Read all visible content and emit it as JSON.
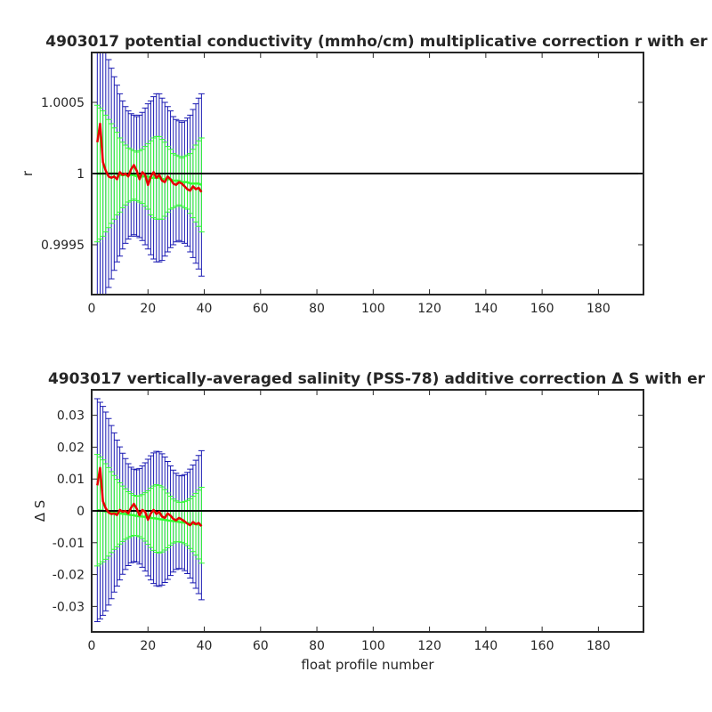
{
  "colors": {
    "correction": "#e60000",
    "conservative_err": "#1a1ab3",
    "stat_err": "#33ff33",
    "zero_line": "#000000"
  },
  "chart_data": [
    {
      "type": "line",
      "title": "4903017 potential conductivity (mmho/cm) multiplicative correction r with er",
      "xlabel": "",
      "ylabel": "r",
      "xlim": [
        0,
        196
      ],
      "ylim": [
        0.99915,
        1.00085
      ],
      "xticks": [
        0,
        20,
        40,
        60,
        80,
        100,
        120,
        140,
        160,
        180
      ],
      "yticks": [
        0.9995,
        1,
        1.0005
      ],
      "ytick_labels": [
        "0.9995",
        "1",
        "1.0005"
      ],
      "reference_line": 1,
      "grid": false,
      "x": [
        2,
        3,
        4,
        5,
        6,
        7,
        8,
        9,
        10,
        11,
        12,
        13,
        14,
        15,
        16,
        17,
        18,
        19,
        20,
        21,
        22,
        23,
        24,
        25,
        26,
        27,
        28,
        29,
        30,
        31,
        32,
        33,
        34,
        35,
        36,
        37,
        38,
        39
      ],
      "series": [
        {
          "values": [
            1.00022,
            1.00035,
            1.00008,
            1.00002,
            0.99998,
            0.99997,
            0.99998,
            0.99996,
            1.00001,
            0.99999,
            1,
            0.99998,
            1.00003,
            1.00006,
            1.00002,
            0.99996,
            1.00001,
            0.99999,
            0.99992,
            0.99998,
            1.00001,
            0.99997,
            0.99999,
            0.99995,
            0.99994,
            0.99998,
            0.99996,
            0.99993,
            0.99992,
            0.99994,
            0.99993,
            0.99991,
            0.99989,
            0.99988,
            0.99991,
            0.99989,
            0.9999,
            0.99987
          ]
        },
        {
          "values": [
            1,
            1,
            1,
            1,
            1,
            1,
            1,
            1,
            0.99999,
            0.99999,
            0.99999,
            0.99999,
            0.99999,
            0.99999,
            0.99998,
            0.99998,
            0.99998,
            0.99998,
            0.99998,
            0.99997,
            0.99997,
            0.99997,
            0.99997,
            0.99996,
            0.99996,
            0.99996,
            0.99996,
            0.99995,
            0.99995,
            0.99995,
            0.99994,
            0.99994,
            0.99994,
            0.99993,
            0.99993,
            0.99993,
            0.99993,
            0.99992
          ]
        },
        {
          "err": [
            0.00048,
            0.00046,
            0.00044,
            0.00041,
            0.00038,
            0.00035,
            0.00032,
            0.00029,
            0.00026,
            0.00023,
            0.00021,
            0.00019,
            0.00018,
            0.00017,
            0.00017,
            0.00018,
            0.00019,
            0.00021,
            0.00023,
            0.00026,
            0.00028,
            0.00029,
            0.00029,
            0.00028,
            0.00026,
            0.00023,
            0.00021,
            0.00019,
            0.00018,
            0.00017,
            0.00017,
            0.00018,
            0.00019,
            0.00021,
            0.00024,
            0.00027,
            0.0003,
            0.00033
          ]
        },
        {
          "err": [
            0.00096,
            0.00093,
            0.0009,
            0.00085,
            0.0008,
            0.00074,
            0.00068,
            0.00062,
            0.00057,
            0.00052,
            0.00048,
            0.00045,
            0.00043,
            0.00042,
            0.00042,
            0.00043,
            0.00045,
            0.00048,
            0.00051,
            0.00054,
            0.00057,
            0.00059,
            0.00059,
            0.00057,
            0.00054,
            0.00051,
            0.00048,
            0.00045,
            0.00043,
            0.00042,
            0.00042,
            0.00043,
            0.00045,
            0.00048,
            0.00052,
            0.00056,
            0.0006,
            0.00064
          ]
        }
      ]
    },
    {
      "type": "line",
      "title": "4903017 vertically-averaged salinity (PSS-78) additive correction Δ S with er",
      "xlabel": "float profile number",
      "ylabel": "Δ S",
      "xlim": [
        0,
        196
      ],
      "ylim": [
        -0.038,
        0.038
      ],
      "xticks": [
        0,
        20,
        40,
        60,
        80,
        100,
        120,
        140,
        160,
        180
      ],
      "yticks": [
        -0.03,
        -0.02,
        -0.01,
        0,
        0.01,
        0.02,
        0.03
      ],
      "ytick_labels": [
        "-0.03",
        "-0.02",
        "-0.01",
        "0",
        "0.01",
        "0.02",
        "0.03"
      ],
      "reference_line": 0,
      "grid": false,
      "x": [
        2,
        3,
        4,
        5,
        6,
        7,
        8,
        9,
        10,
        11,
        12,
        13,
        14,
        15,
        16,
        17,
        18,
        19,
        20,
        21,
        22,
        23,
        24,
        25,
        26,
        27,
        28,
        29,
        30,
        31,
        32,
        33,
        34,
        35,
        36,
        37,
        38,
        39
      ],
      "series": [
        {
          "values": [
            0.008,
            0.0135,
            0.003,
            0.0008,
            -0.0005,
            -0.001,
            -0.0008,
            -0.0013,
            0.0003,
            -0.0003,
            0,
            -0.0008,
            0.001,
            0.0022,
            0.0007,
            -0.0014,
            0.0003,
            -0.0003,
            -0.0028,
            -0.0008,
            0.0003,
            -0.001,
            -0.0003,
            -0.0018,
            -0.0022,
            -0.0008,
            -0.0015,
            -0.0025,
            -0.003,
            -0.0022,
            -0.0027,
            -0.0033,
            -0.004,
            -0.0045,
            -0.0035,
            -0.0042,
            -0.0038,
            -0.0048
          ]
        },
        {
          "values": [
            0.0002,
            0.0001,
            0,
            -0.0002,
            -0.0003,
            -0.0004,
            -0.0005,
            -0.0007,
            -0.0008,
            -0.0009,
            -0.001,
            -0.0012,
            -0.0013,
            -0.0014,
            -0.0016,
            -0.0017,
            -0.0018,
            -0.0019,
            -0.0021,
            -0.0022,
            -0.0023,
            -0.0024,
            -0.0026,
            -0.0027,
            -0.0028,
            -0.003,
            -0.0031,
            -0.0032,
            -0.0033,
            -0.0035,
            -0.0036,
            -0.0037,
            -0.0038,
            -0.004,
            -0.0041,
            -0.0042,
            -0.0043,
            -0.0045
          ]
        },
        {
          "err": [
            0.0175,
            0.0168,
            0.016,
            0.015,
            0.0139,
            0.0127,
            0.0116,
            0.0106,
            0.0096,
            0.0087,
            0.0079,
            0.0072,
            0.0067,
            0.0063,
            0.0062,
            0.0064,
            0.0069,
            0.0076,
            0.0084,
            0.0093,
            0.0101,
            0.0106,
            0.0106,
            0.0102,
            0.0095,
            0.0086,
            0.0077,
            0.0069,
            0.0064,
            0.0062,
            0.0063,
            0.0066,
            0.0071,
            0.0078,
            0.0087,
            0.0097,
            0.0108,
            0.0119
          ]
        },
        {
          "err": [
            0.035,
            0.034,
            0.0328,
            0.0312,
            0.0293,
            0.0272,
            0.025,
            0.0229,
            0.0209,
            0.019,
            0.0174,
            0.016,
            0.015,
            0.0145,
            0.0145,
            0.015,
            0.0159,
            0.017,
            0.0183,
            0.0195,
            0.0205,
            0.0211,
            0.0211,
            0.0206,
            0.0197,
            0.0185,
            0.0172,
            0.016,
            0.0151,
            0.0146,
            0.0146,
            0.0151,
            0.0159,
            0.0171,
            0.0185,
            0.0201,
            0.0217,
            0.0234
          ]
        }
      ]
    }
  ]
}
